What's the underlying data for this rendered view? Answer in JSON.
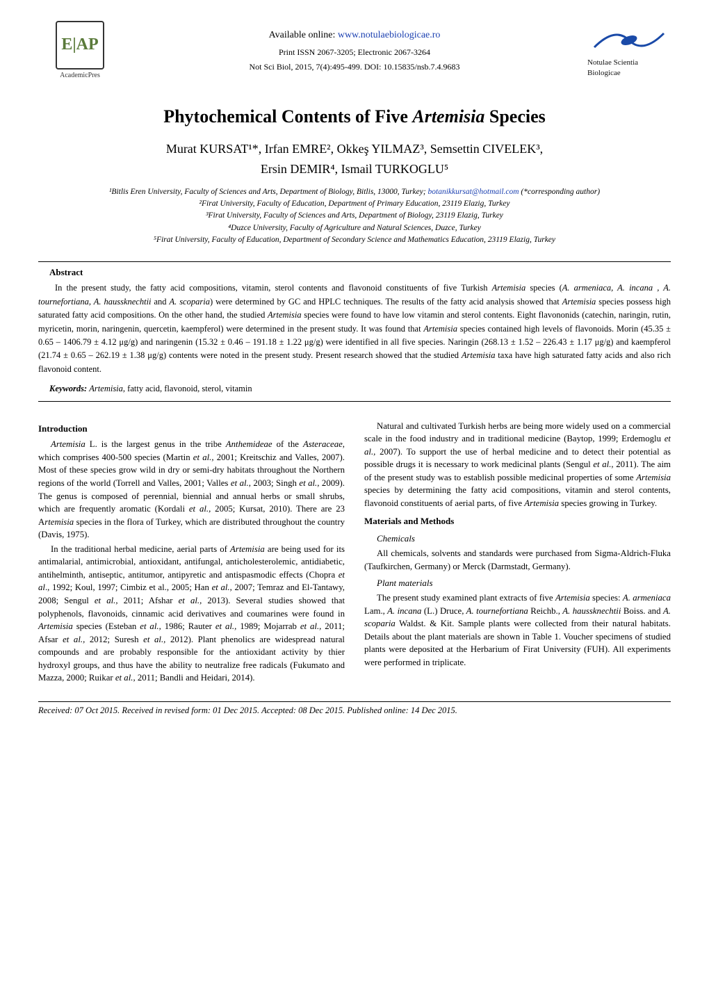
{
  "header": {
    "available_prefix": "Available online: ",
    "site_url": "www.notulaebiologicae.ro",
    "issn": "Print ISSN 2067-3205; Electronic 2067-3264",
    "citation": "Not Sci Biol, 2015, 7(4):495-499. DOI: 10.15835/nsb.7.4.9683",
    "logo_left_text": "E|AP",
    "logo_left_caption": "AcademicPres",
    "logo_right_caption": "Notulae Scientia Biologicae",
    "colors": {
      "link": "#1a3fb0",
      "logo_green": "#5a7a3a",
      "nsb_blue": "#1a4aa8"
    }
  },
  "title": {
    "pre": "Phytochemical Contents of Five ",
    "genus": "Artemisia",
    "post": " Species"
  },
  "authors_line1": "Murat KURSAT¹*, Irfan EMRE², Okkeş YILMAZ³, Semsettin CIVELEK³,",
  "authors_line2": "Ersin DEMIR⁴, Ismail TURKOGLU⁵",
  "affiliations": {
    "a1_pre": "¹Bitlis Eren University, Faculty of Sciences and Arts, Department of Biology, Bitlis, 13000, Turkey; ",
    "a1_email": "botanikkursat@hotmail.com",
    "a1_post": " (*corresponding author)",
    "a2": "²Firat University, Faculty of Education, Department of Primary Education, 23119 Elazig, Turkey",
    "a3": "³Firat University, Faculty of Sciences and Arts, Department of Biology, 23119 Elazig, Turkey",
    "a4": "⁴Duzce University, Faculty of Agriculture and Natural Sciences, Duzce, Turkey",
    "a5": "⁵Firat University, Faculty of Education, Department of Secondary Science and Mathematics Education, 23119 Elazig, Turkey"
  },
  "abstract": {
    "heading": "Abstract",
    "body": "In the present study, the fatty acid compositions, vitamin, sterol contents and flavonoid constituents of five Turkish <i>Artemisia</i> species (<i>A. armeniaca, A. incana , A. tournefortiana, A. haussknechtii</i> and <i>A. scoparia</i>) were determined by GC and HPLC techniques. The results of the fatty acid analysis showed that <i>Artemisia</i> species possess high saturated fatty acid compositions. On the other hand, the studied <i>Artemisia</i> species were found to have low vitamin and sterol contents. Eight flavononids (catechin, naringin, rutin, myricetin, morin, naringenin, quercetin, kaempferol) were determined in the present study. It was found that <i>Artemisia</i> species contained high levels of flavonoids. Morin (45.35 ± 0.65 – 1406.79 ± 4.12 μg/g) and naringenin (15.32 ± 0.46 – 191.18 ± 1.22 μg/g) were identified in all five species. Naringin (268.13 ± 1.52 – 226.43 ± 1.17 μg/g) and kaempferol (21.74 ± 0.65 – 262.19 ± 1.38 μg/g) contents were noted in the present study. Present research showed that the studied <i>Artemisia</i> taxa have high saturated fatty acids and also rich flavonoid content."
  },
  "keywords": {
    "label": "Keywords:",
    "text": " <i>Artemisia</i>, fatty acid, flavonoid, sterol, vitamin"
  },
  "intro": {
    "heading": "Introduction",
    "p1": "<i>Artemisia</i> L. is the largest genus in the tribe <i>Anthemideae</i> of the <i>Asteraceae</i>, which comprises 400-500 species (Martin <i>et al.,</i> 2001; Kreitschiz and Valles, 2007). Most of these species grow wild in dry or semi-dry habitats throughout the Northern regions of the world (Torrell and Valles, 2001; Valles <i>et al.,</i> 2003; Singh <i>et al.,</i> 2009). The genus is composed of perennial, biennial and annual herbs or small shrubs, which are frequently aromatic (Kordali <i>et al.,</i> 2005; Kursat, 2010). There are 23 A<i>rtemisia</i> species in the flora of Turkey, which are distributed throughout the country (Davis, 1975).",
    "p2": "In the traditional herbal medicine, aerial parts of <i>Artemisia</i> are being used for its antimalarial, antimicrobial, antioxidant, antifungal, anticholesterolemic, antidiabetic, antihelminth, antiseptic, antitumor, antipyretic and antispasmodic effects (Chopra <i>et al</i>., 1992; Koul, 1997; Cimbiz et al., 2005; Han <i>et al.,</i> 2007; Temraz and El-Tantawy, 2008; Sengul <i>et al.,</i> 2011; Afshar <i>et al.,</i> 2013). Several studies showed that polyphenols, flavonoids, cinnamic acid derivatives and coumarines were found in <i>Artemisia</i> species (Esteban <i>et al.,</i> 1986; Rauter <i>et al.,</i> 1989; Mojarrab <i>et al.,</i> 2011; Afsar <i>et al.,</i> 2012; Suresh <i>et al.,</i> 2012). Plant phenolics are widespread natural compounds and are probably responsible for the antioxidant activity by thier hydroxyl groups, and thus have the ability to neutralize free radicals (Fukumato and Mazza, 2000; Ruikar <i>et al.,</i> 2011; Bandli and Heidari, 2014).",
    "p3": "Natural and cultivated Turkish herbs are being more widely used on a commercial scale in the food industry and in traditional medicine (Baytop, 1999; Erdemoglu <i>et al.,</i> 2007). To support the use of herbal medicine and to detect their potential as possible drugs it is necessary to work medicinal plants (Sengul <i>et al.,</i> 2011). The aim of the present study was to establish possible medicinal properties of some <i>Artemisia</i> species by determining the fatty acid compositions, vitamin and sterol contents, flavonoid constituents of aerial parts, of five <i>Artemisia</i> species growing in Turkey."
  },
  "methods": {
    "heading": "Materials and Methods",
    "chem_head": "Chemicals",
    "chem_body": "All chemicals, solvents and standards were purchased from Sigma-Aldrich-Fluka (Taufkirchen, Germany) or Merck (Darmstadt, Germany).",
    "plant_head": "Plant materials",
    "plant_body": "The present study examined plant extracts of five <i>Artemisia</i> species: <i>A. armeniaca</i> Lam.<i>, A. incana</i> (L.) Druce<i>, A. tournefortiana</i> Reichb.<i>, A. haussknechtii</i> Boiss. and <i>A. scoparia</i> Waldst. & Kit. Sample plants were collected from their natural habitats. Details about the plant materials are shown in Table 1. Voucher specimens of studied plants were deposited at the Herbarium of Firat University (FUH). All experiments were performed in triplicate."
  },
  "footer": "Received: 07 Oct 2015. Received in revised form: 01 Dec 2015. Accepted: 08 Dec 2015. Published online: 14 Dec 2015."
}
